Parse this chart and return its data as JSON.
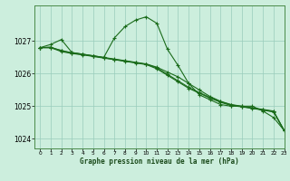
{
  "xlabel": "Graphe pression niveau de la mer (hPa)",
  "xlim": [
    -0.5,
    23
  ],
  "ylim": [
    1023.7,
    1028.1
  ],
  "yticks": [
    1024,
    1025,
    1026,
    1027
  ],
  "xticks": [
    0,
    1,
    2,
    3,
    4,
    5,
    6,
    7,
    8,
    9,
    10,
    11,
    12,
    13,
    14,
    15,
    16,
    17,
    18,
    19,
    20,
    21,
    22,
    23
  ],
  "bg_color": "#cceedd",
  "grid_color": "#99ccbb",
  "line_color": "#1a6b1a",
  "line1": {
    "x": [
      0,
      1,
      2,
      3,
      4,
      5,
      6,
      7,
      8,
      9,
      10,
      11,
      12,
      13,
      14,
      15,
      16,
      17,
      18,
      19,
      20,
      21,
      22,
      23
    ],
    "y": [
      1026.8,
      1026.9,
      1027.05,
      1026.65,
      1026.6,
      1026.55,
      1026.5,
      1027.1,
      1027.45,
      1027.65,
      1027.75,
      1027.55,
      1026.75,
      1026.25,
      1025.7,
      1025.35,
      1025.2,
      1025.05,
      1025.0,
      1025.0,
      1025.0,
      1024.85,
      1024.65,
      1024.25
    ]
  },
  "line2": {
    "x": [
      0,
      1,
      2,
      3,
      4,
      5,
      6,
      7,
      8,
      9,
      10,
      11,
      12,
      13,
      14,
      15,
      16,
      17,
      18,
      19,
      20,
      21,
      22,
      23
    ],
    "y": [
      1026.8,
      1026.82,
      1026.7,
      1026.65,
      1026.6,
      1026.55,
      1026.5,
      1026.45,
      1026.4,
      1026.35,
      1026.3,
      1026.2,
      1026.05,
      1025.9,
      1025.7,
      1025.5,
      1025.3,
      1025.15,
      1025.05,
      1025.0,
      1024.95,
      1024.9,
      1024.85,
      1024.25
    ]
  },
  "line3": {
    "x": [
      0,
      1,
      2,
      3,
      4,
      5,
      6,
      7,
      8,
      9,
      10,
      11,
      12,
      13,
      14,
      15,
      16,
      17,
      18,
      19,
      20,
      21,
      22,
      23
    ],
    "y": [
      1026.8,
      1026.8,
      1026.68,
      1026.62,
      1026.58,
      1026.53,
      1026.48,
      1026.43,
      1026.38,
      1026.33,
      1026.28,
      1026.15,
      1025.95,
      1025.75,
      1025.55,
      1025.4,
      1025.25,
      1025.12,
      1025.02,
      1024.98,
      1024.93,
      1024.88,
      1024.82,
      1024.25
    ]
  },
  "line4": {
    "x": [
      0,
      1,
      2,
      3,
      4,
      5,
      6,
      7,
      8,
      9,
      10,
      11,
      12,
      13,
      14,
      15,
      16,
      17,
      18,
      19,
      20,
      21,
      22,
      23
    ],
    "y": [
      1026.8,
      1026.8,
      1026.72,
      1026.63,
      1026.59,
      1026.54,
      1026.49,
      1026.44,
      1026.39,
      1026.34,
      1026.29,
      1026.18,
      1025.98,
      1025.78,
      1025.58,
      1025.42,
      1025.27,
      1025.14,
      1025.04,
      1024.99,
      1024.94,
      1024.89,
      1024.83,
      1024.25
    ]
  }
}
